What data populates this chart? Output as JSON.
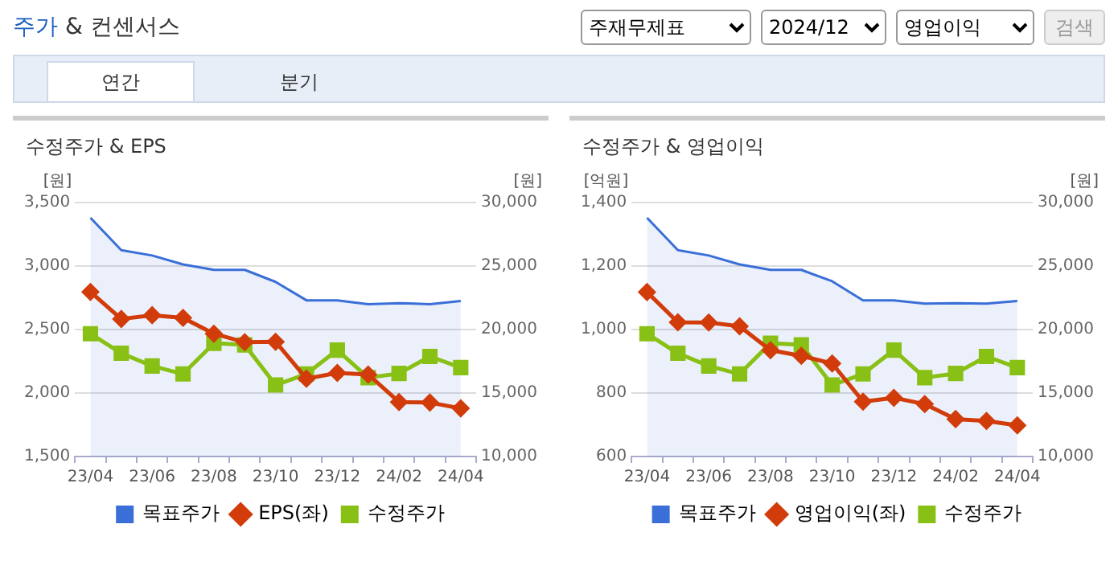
{
  "chart_data": [
    {
      "type": "other",
      "title": "주가 & 컨센서스",
      "annotations": [
        "주재무제표",
        "2024/12",
        "영업이익",
        "검색",
        "연간",
        "분기"
      ]
    },
    {
      "type": "line",
      "title": "수정주가 & EPS",
      "ylabel": "[원]",
      "y2label": "[원]",
      "categories": [
        "23/04",
        null,
        "23/06",
        null,
        "23/08",
        null,
        "23/10",
        null,
        "23/12",
        null,
        "24/02",
        null,
        "24/04"
      ],
      "series": [
        {
          "name": "목표주가",
          "type": "area",
          "axis": "y2",
          "marker": "none",
          "color": "#3a6fd8",
          "values": [
            28800,
            26250,
            25830,
            25130,
            24700,
            24700,
            23750,
            22300,
            22300,
            22000,
            22080,
            22000,
            22250
          ]
        },
        {
          "name": "EPS(좌)",
          "type": "line",
          "marker": "diamond",
          "color": "#d23c0a",
          "values": [
            2796,
            2583,
            2613,
            2592,
            2467,
            2400,
            2404,
            2113,
            2158,
            2146,
            1929,
            1925,
            1879
          ]
        },
        {
          "name": "수정주가",
          "type": "line",
          "axis": "y2",
          "marker": "square",
          "color": "#88c015",
          "values": [
            19670,
            18130,
            17130,
            16500,
            18920,
            18790,
            15630,
            16500,
            18380,
            16210,
            16540,
            17880,
            17000
          ]
        }
      ],
      "ylim": [
        1500,
        3500
      ],
      "yticks": [
        {
          "value": 1500,
          "label": "1,500"
        },
        {
          "value": 2000,
          "label": "2,000"
        },
        {
          "value": 2500,
          "label": "2,500"
        },
        {
          "value": 3000,
          "label": "3,000"
        },
        {
          "value": 3500,
          "label": "3,500"
        }
      ],
      "y2lim": [
        10000,
        30000
      ],
      "y2ticks": [
        {
          "value": 10000,
          "label": "10,000"
        },
        {
          "value": 15000,
          "label": "15,000"
        },
        {
          "value": 20000,
          "label": "20,000"
        },
        {
          "value": 25000,
          "label": "25,000"
        },
        {
          "value": 30000,
          "label": "30,000"
        }
      ],
      "grid": "y",
      "legend": "bottom"
    },
    {
      "type": "line",
      "title": "수정주가 & 영업이익",
      "ylabel": "[억원]",
      "y2label": "[원]",
      "categories": [
        "23/04",
        null,
        "23/06",
        null,
        "23/08",
        null,
        "23/10",
        null,
        "23/12",
        null,
        "24/02",
        null,
        "24/04"
      ],
      "series": [
        {
          "name": "목표주가",
          "type": "area",
          "axis": "y2",
          "marker": "none",
          "color": "#3a6fd8",
          "values": [
            28800,
            26250,
            25830,
            25130,
            24700,
            24700,
            23800,
            22300,
            22300,
            22040,
            22080,
            22040,
            22250
          ]
        },
        {
          "name": "영업이익(좌)",
          "type": "line",
          "marker": "diamond",
          "color": "#d23c0a",
          "values": [
            1118,
            1023,
            1022,
            1010,
            935,
            917,
            893,
            773,
            785,
            765,
            718,
            712,
            698
          ]
        },
        {
          "name": "수정주가",
          "type": "line",
          "axis": "y2",
          "marker": "square",
          "color": "#88c015",
          "values": [
            19670,
            18130,
            17130,
            16500,
            18920,
            18790,
            15630,
            16500,
            18380,
            16210,
            16540,
            17880,
            17000
          ]
        }
      ],
      "ylim": [
        600,
        1400
      ],
      "yticks": [
        {
          "value": 600,
          "label": "600"
        },
        {
          "value": 800,
          "label": "800"
        },
        {
          "value": 1000,
          "label": "1,000"
        },
        {
          "value": 1200,
          "label": "1,200"
        },
        {
          "value": 1400,
          "label": "1,400"
        }
      ],
      "y2lim": [
        10000,
        30000
      ],
      "y2ticks": [
        {
          "value": 10000,
          "label": "10,000"
        },
        {
          "value": 15000,
          "label": "15,000"
        },
        {
          "value": 20000,
          "label": "20,000"
        },
        {
          "value": 25000,
          "label": "25,000"
        },
        {
          "value": 30000,
          "label": "30,000"
        }
      ],
      "grid": "y",
      "legend": "bottom"
    }
  ]
}
